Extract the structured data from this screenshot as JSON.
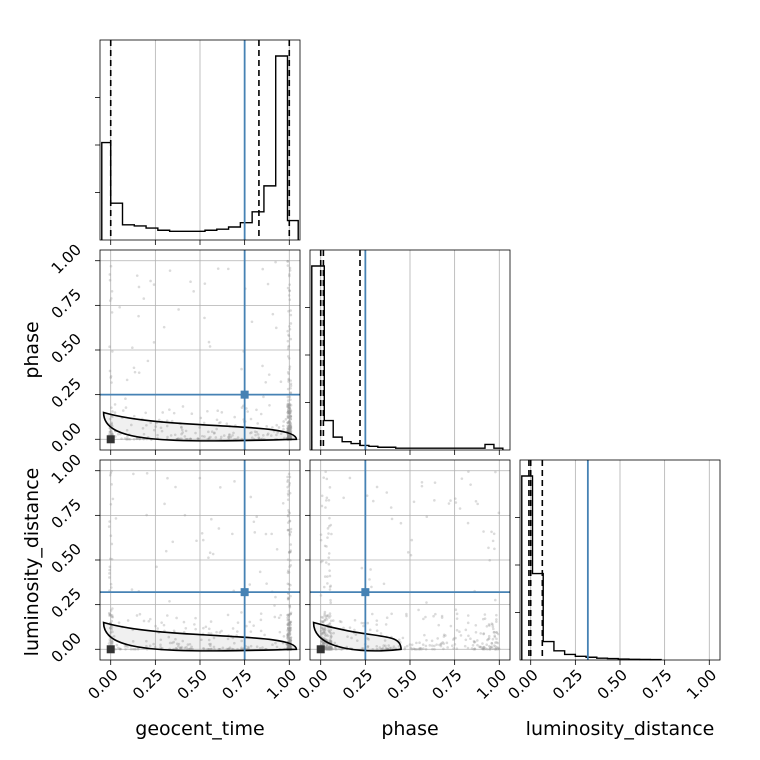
{
  "chart_data": {
    "type": "corner",
    "parameters": [
      "geocent_time",
      "phase",
      "luminosity_distance"
    ],
    "ticks": [
      0.0,
      0.25,
      0.5,
      0.75,
      1.0
    ],
    "tick_labels": [
      "0.00",
      "0.25",
      "0.50",
      "0.75",
      "1.00"
    ],
    "xlim": [
      -0.06,
      1.06
    ],
    "ylim": [
      -0.06,
      1.06
    ],
    "grid": true,
    "truths": {
      "geocent_time": 0.75,
      "phase": 0.25,
      "luminosity_distance": 0.32
    },
    "colors": {
      "truth": "#4682b4",
      "hist": "#000000",
      "contour": "#000000",
      "points": "#999999"
    },
    "diagonal": [
      {
        "parameter": "geocent_time",
        "bin_edges": [
          -0.05,
          0.0,
          0.066,
          0.132,
          0.198,
          0.264,
          0.33,
          0.396,
          0.462,
          0.528,
          0.594,
          0.66,
          0.726,
          0.792,
          0.858,
          0.924,
          0.99,
          1.05
        ],
        "counts": [
          0.45,
          0.17,
          0.07,
          0.065,
          0.055,
          0.045,
          0.04,
          0.04,
          0.04,
          0.045,
          0.05,
          0.06,
          0.08,
          0.13,
          0.25,
          0.85,
          0.09
        ],
        "quantiles": [
          0.0,
          0.83,
          1.0
        ]
      },
      {
        "parameter": "phase",
        "bin_edges": [
          -0.05,
          0.02,
          0.07,
          0.12,
          0.17,
          0.22,
          0.27,
          0.32,
          0.37,
          0.42,
          0.47,
          0.52,
          0.57,
          0.62,
          0.67,
          0.72,
          0.77,
          0.82,
          0.87,
          0.92,
          0.97,
          1.02
        ],
        "counts": [
          1.0,
          0.16,
          0.07,
          0.045,
          0.035,
          0.025,
          0.02,
          0.015,
          0.015,
          0.01,
          0.01,
          0.01,
          0.01,
          0.01,
          0.01,
          0.01,
          0.01,
          0.01,
          0.01,
          0.03,
          0.01
        ],
        "quantiles": [
          0.0,
          0.015,
          0.22
        ]
      },
      {
        "parameter": "luminosity_distance",
        "bin_edges": [
          -0.05,
          0.01,
          0.07,
          0.13,
          0.19,
          0.25,
          0.31,
          0.37,
          0.43,
          0.49,
          0.55,
          0.61,
          0.67,
          0.73
        ],
        "counts": [
          1.0,
          0.47,
          0.1,
          0.05,
          0.03,
          0.02,
          0.015,
          0.01,
          0.008,
          0.005,
          0.004,
          0.003,
          0.002
        ],
        "quantiles": [
          -0.01,
          0.0,
          0.065
        ]
      }
    ],
    "panels_2d": [
      {
        "x": "geocent_time",
        "y": "phase"
      },
      {
        "x": "geocent_time",
        "y": "luminosity_distance"
      },
      {
        "x": "phase",
        "y": "luminosity_distance"
      }
    ]
  }
}
